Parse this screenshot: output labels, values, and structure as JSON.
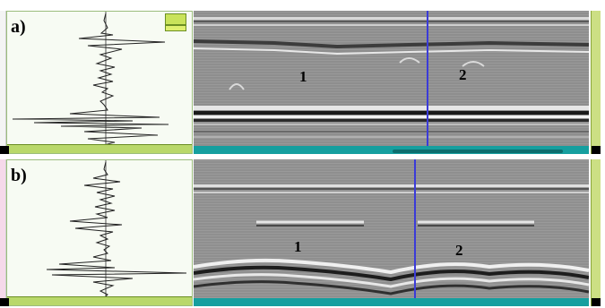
{
  "panels": [
    {
      "label": "a)",
      "reflection_1": "1",
      "reflection_2": "2"
    },
    {
      "label": "b)",
      "reflection_1": "1",
      "reflection_2": "2"
    }
  ],
  "colors": {
    "ascan_background": "#f7fbf3",
    "bscan_background": "#8d8d8d",
    "cursor": "#3b3bd8",
    "scale_bar": "#b9d86a",
    "bscan_axis": "#169f9f"
  }
}
